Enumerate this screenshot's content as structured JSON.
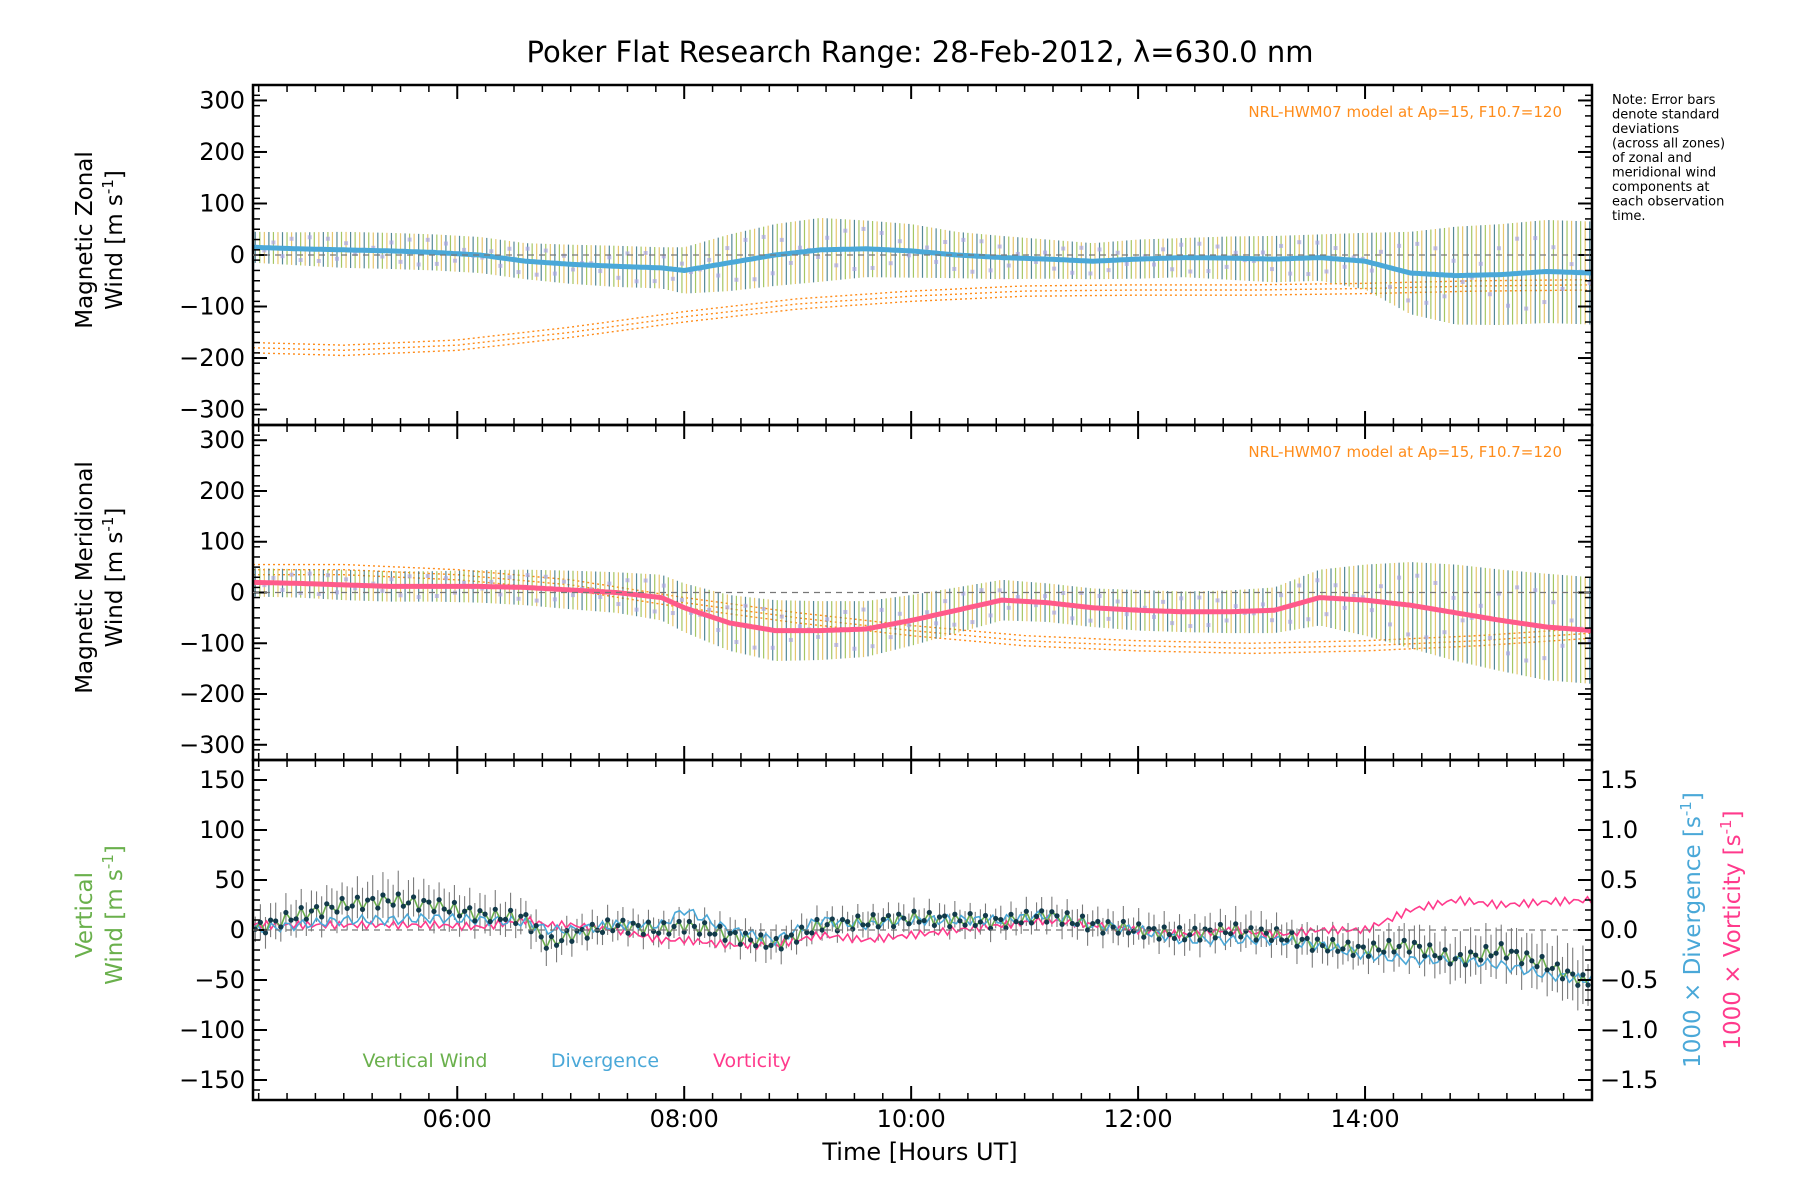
{
  "chart_data": {
    "type": "line",
    "title": "Poker Flat Research Range: 28-Feb-2012, λ=630.0 nm",
    "xlabel": "Time [Hours UT]",
    "xlim": [
      4.2,
      16.0
    ],
    "x_ticks": [
      6,
      8,
      10,
      12,
      14
    ],
    "x_tick_labels": [
      "06:00",
      "08:00",
      "10:00",
      "12:00",
      "14:00"
    ],
    "note": [
      "Note: Error bars",
      "denote standard",
      "deviations",
      "(across all zones)",
      "of zonal and",
      "meridional wind",
      "components at",
      "each observation",
      "time."
    ],
    "colors": {
      "zonal": "#4aa8d8",
      "meridional": "#ff5a8a",
      "vertical": "#6ab04c",
      "divergence": "#4aa8d8",
      "vorticity": "#ff3a8c",
      "model": "#ff8c1a",
      "zones": "#a9a6e0",
      "errorbar": "#444444"
    },
    "panels": [
      {
        "ylabel_parts": [
          "Magnetic Zonal",
          "Wind [m s",
          "-1",
          "]"
        ],
        "ylim": [
          -330,
          330
        ],
        "y_ticks": [
          300,
          200,
          100,
          0,
          -100,
          -200,
          -300
        ],
        "y_tick_labels": [
          "300",
          "200",
          "100",
          "0",
          "−100",
          "−200",
          "−300"
        ],
        "model_label": "NRL-HWM07 model at Ap=15, F10.7=120",
        "series_name": "Zonal wind",
        "x": [
          4.2,
          4.6,
          5.0,
          5.4,
          5.8,
          6.2,
          6.6,
          7.0,
          7.4,
          7.8,
          8.0,
          8.4,
          8.8,
          9.2,
          9.6,
          10.0,
          10.4,
          10.8,
          11.2,
          11.6,
          12.0,
          12.4,
          12.8,
          13.2,
          13.6,
          14.0,
          14.4,
          14.8,
          15.2,
          15.6,
          16.0
        ],
        "values": [
          15,
          12,
          10,
          8,
          5,
          0,
          -12,
          -18,
          -22,
          -25,
          -30,
          -15,
          0,
          10,
          12,
          8,
          0,
          -5,
          -8,
          -12,
          -8,
          -5,
          -6,
          -8,
          -5,
          -12,
          -35,
          -40,
          -38,
          -32,
          -35
        ],
        "error_sd": [
          30,
          32,
          35,
          35,
          35,
          35,
          35,
          38,
          40,
          40,
          45,
          55,
          60,
          62,
          55,
          52,
          45,
          42,
          38,
          35,
          38,
          38,
          42,
          45,
          45,
          55,
          80,
          95,
          98,
          100,
          100
        ],
        "model_x": [
          4.2,
          5.0,
          6.0,
          7.0,
          8.0,
          9.0,
          10.0,
          11.0,
          12.0,
          13.0,
          14.0,
          15.0,
          16.0
        ],
        "model_y": [
          -180,
          -185,
          -175,
          -150,
          -120,
          -95,
          -80,
          -70,
          -68,
          -68,
          -65,
          -60,
          -58
        ]
      },
      {
        "ylabel_parts": [
          "Magnetic Meridional",
          "Wind [m s",
          "-1",
          "]"
        ],
        "ylim": [
          -330,
          330
        ],
        "y_ticks": [
          300,
          200,
          100,
          0,
          -100,
          -200,
          -300
        ],
        "y_tick_labels": [
          "300",
          "200",
          "100",
          "0",
          "−100",
          "−200",
          "−300"
        ],
        "model_label": "NRL-HWM07 model at Ap=15, F10.7=120",
        "series_name": "Meridional wind",
        "x": [
          4.2,
          4.6,
          5.0,
          5.4,
          5.8,
          6.2,
          6.6,
          7.0,
          7.4,
          7.8,
          8.0,
          8.4,
          8.8,
          9.2,
          9.6,
          10.0,
          10.4,
          10.8,
          11.2,
          11.6,
          12.0,
          12.4,
          12.8,
          13.2,
          13.6,
          14.0,
          14.4,
          14.8,
          15.2,
          15.6,
          16.0
        ],
        "values": [
          20,
          18,
          15,
          12,
          12,
          12,
          10,
          5,
          0,
          -10,
          -30,
          -60,
          -75,
          -75,
          -72,
          -55,
          -35,
          -15,
          -20,
          -30,
          -35,
          -38,
          -38,
          -35,
          -10,
          -15,
          -25,
          -40,
          -55,
          -68,
          -75
        ],
        "error_sd": [
          28,
          28,
          30,
          30,
          30,
          32,
          35,
          38,
          40,
          45,
          48,
          55,
          60,
          58,
          55,
          50,
          45,
          40,
          38,
          38,
          40,
          40,
          42,
          45,
          55,
          70,
          85,
          95,
          100,
          105,
          105
        ],
        "model_x": [
          4.2,
          5.0,
          6.0,
          7.0,
          8.0,
          9.0,
          10.0,
          11.0,
          12.0,
          13.0,
          14.0,
          15.0,
          16.0
        ],
        "model_y": [
          45,
          45,
          35,
          15,
          -20,
          -50,
          -75,
          -95,
          -105,
          -110,
          -105,
          -95,
          -80
        ]
      },
      {
        "ylabel_parts": [
          "Vertical",
          "Wind [m s",
          "-1",
          "]"
        ],
        "ylim": [
          -170,
          170
        ],
        "y_ticks": [
          150,
          100,
          50,
          0,
          -50,
          -100,
          -150
        ],
        "y_tick_labels": [
          "150",
          "100",
          "50",
          "0",
          "−50",
          "−100",
          "−150"
        ],
        "y2lim": [
          -1.7,
          1.7
        ],
        "y2_ticks": [
          1.5,
          1.0,
          0.5,
          0.0,
          -0.5,
          -1.0,
          -1.5
        ],
        "y2_tick_labels": [
          "1.5",
          "1.0",
          "0.5",
          "0.0",
          "−0.5",
          "−1.0",
          "−1.5"
        ],
        "y2label_div_parts": [
          "1000 × Divergence [s",
          "-1",
          "]"
        ],
        "y2label_vor_parts": [
          "1000 × Vorticity [s",
          "-1",
          "]"
        ],
        "legend": [
          "Vertical Wind",
          "Divergence",
          "Vorticity"
        ],
        "x": [
          4.2,
          4.6,
          5.0,
          5.4,
          5.8,
          6.2,
          6.6,
          6.8,
          7.0,
          7.4,
          7.8,
          8.0,
          8.4,
          8.8,
          9.2,
          9.6,
          10.0,
          10.4,
          10.8,
          11.2,
          11.6,
          12.0,
          12.4,
          12.8,
          13.2,
          13.6,
          14.0,
          14.4,
          14.8,
          15.2,
          15.6,
          16.0
        ],
        "vertical_wind": [
          0,
          15,
          25,
          30,
          25,
          15,
          12,
          -15,
          -5,
          5,
          0,
          5,
          -5,
          -15,
          5,
          8,
          12,
          10,
          8,
          15,
          5,
          0,
          -5,
          0,
          -5,
          -15,
          -20,
          -15,
          -30,
          -20,
          -35,
          -55
        ],
        "vertical_error_sd": [
          18,
          20,
          22,
          24,
          22,
          20,
          18,
          18,
          16,
          15,
          15,
          15,
          16,
          16,
          14,
          14,
          14,
          14,
          14,
          15,
          16,
          16,
          17,
          18,
          18,
          18,
          20,
          22,
          24,
          26,
          28,
          30
        ],
        "divergence": [
          0.0,
          0.05,
          0.1,
          0.1,
          0.12,
          0.1,
          0.08,
          0.0,
          0.0,
          0.05,
          0.05,
          0.2,
          0.0,
          -0.1,
          0.1,
          0.05,
          0.1,
          0.1,
          0.1,
          0.15,
          0.05,
          0.0,
          -0.1,
          -0.1,
          -0.1,
          -0.15,
          -0.25,
          -0.3,
          -0.3,
          -0.35,
          -0.45,
          -0.5
        ],
        "vorticity": [
          0.05,
          0.05,
          0.05,
          0.05,
          0.05,
          0.03,
          0.1,
          0.05,
          0.05,
          0.0,
          -0.1,
          -0.1,
          -0.15,
          -0.15,
          -0.05,
          -0.1,
          -0.05,
          0.0,
          0.05,
          0.1,
          0.05,
          0.0,
          -0.05,
          0.0,
          -0.05,
          0.0,
          0.0,
          0.2,
          0.3,
          0.25,
          0.28,
          0.3
        ]
      }
    ]
  }
}
